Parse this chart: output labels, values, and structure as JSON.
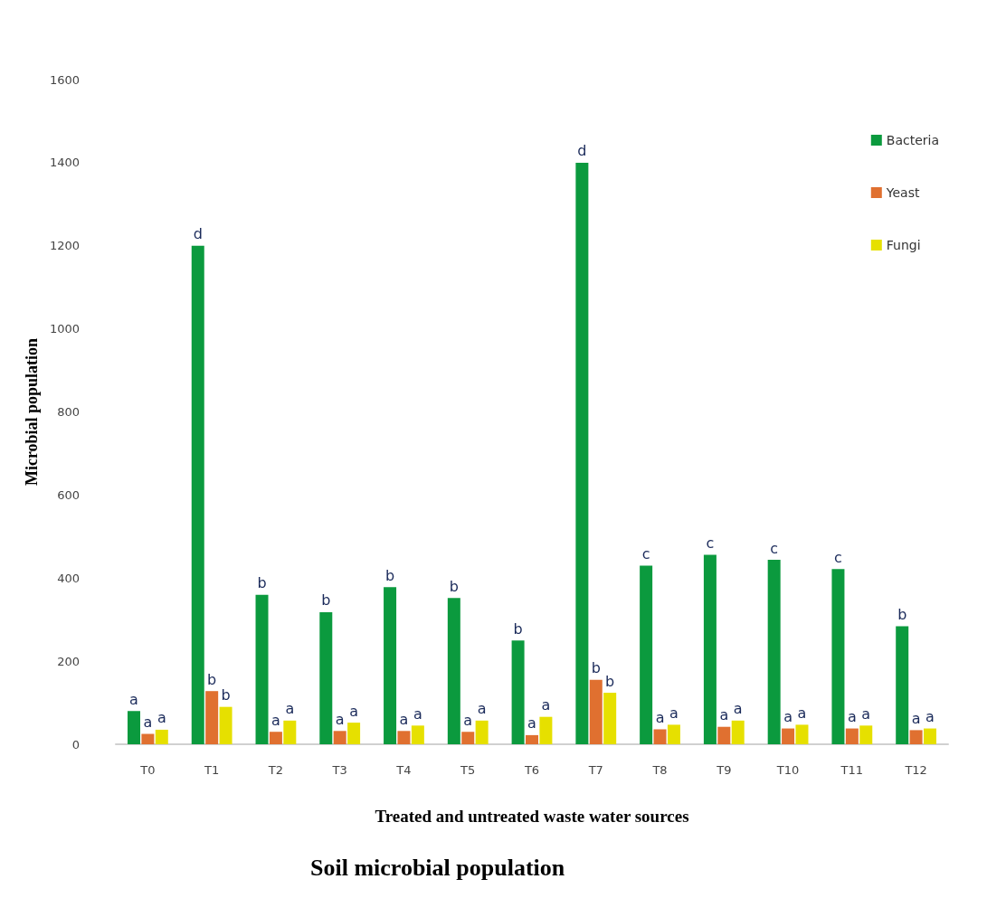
{
  "chart_data": {
    "type": "bar",
    "title": "Soil microbial population",
    "xlabel": "Treated and untreated waste water sources",
    "ylabel": "Microbial population",
    "categories": [
      "T0",
      "T1",
      "T2",
      "T3",
      "T4",
      "T5",
      "T6",
      "T7",
      "T8",
      "T9",
      "T10",
      "T11",
      "T12"
    ],
    "series": [
      {
        "name": "Bacteria",
        "color": "#0b9a3e",
        "values": [
          80,
          1200,
          360,
          318,
          378,
          352,
          250,
          1400,
          430,
          456,
          444,
          422,
          284
        ],
        "value_labels": [
          "a",
          "d",
          "b",
          "b",
          "b",
          "b",
          "b",
          "d",
          "c",
          "c",
          "c",
          "c",
          "b"
        ]
      },
      {
        "name": "Yeast",
        "color": "#e07030",
        "values": [
          25,
          128,
          30,
          32,
          32,
          30,
          22,
          155,
          36,
          42,
          38,
          38,
          34
        ],
        "value_labels": [
          "a",
          "b",
          "a",
          "a",
          "a",
          "a",
          "a",
          "b",
          "a",
          "a",
          "a",
          "a",
          "a"
        ]
      },
      {
        "name": "Fungi",
        "color": "#e6e000",
        "values": [
          35,
          90,
          57,
          52,
          45,
          57,
          66,
          124,
          47,
          57,
          47,
          45,
          38
        ],
        "value_labels": [
          "a",
          "b",
          "a",
          "a",
          "a",
          "a",
          "a",
          "b",
          "a",
          "a",
          "a",
          "a",
          "a"
        ]
      }
    ],
    "ylim": [
      0,
      1600
    ],
    "yticks": [
      0,
      200,
      400,
      600,
      800,
      1000,
      1200,
      1400,
      1600
    ],
    "grid": false,
    "legend": "top right"
  }
}
